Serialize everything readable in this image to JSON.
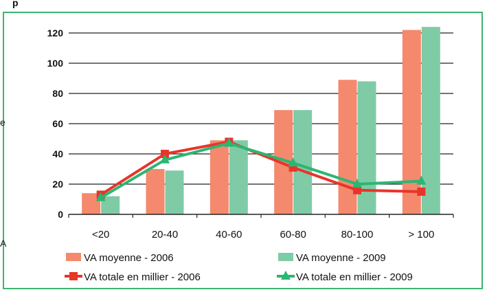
{
  "heading_fragment": "p",
  "side_fragments": [
    "e",
    "A"
  ],
  "chart_data": {
    "type": "bar",
    "categories": [
      "<20",
      "20-40",
      "40-60",
      "60-80",
      "80-100",
      "> 100"
    ],
    "ylim": [
      0,
      120
    ],
    "yticks": [
      0,
      20,
      40,
      60,
      80,
      100,
      120
    ],
    "ytick_labels": [
      "0",
      "20",
      "40",
      "60",
      "80",
      "100",
      "120"
    ],
    "grid": true,
    "legend_position": "bottom",
    "series": [
      {
        "name": "VA moyenne - 2006",
        "kind": "bar",
        "color": "#f4896e",
        "values": [
          14,
          30,
          49,
          69,
          89,
          122
        ]
      },
      {
        "name": "VA moyenne - 2009",
        "kind": "bar",
        "color": "#7fcba6",
        "values": [
          12,
          29,
          49,
          69,
          88,
          124
        ]
      },
      {
        "name": "VA totale en millier - 2006",
        "kind": "line",
        "marker": "square",
        "color": "#e8352a",
        "values": [
          13,
          40,
          48,
          31,
          16,
          15
        ]
      },
      {
        "name": "VA totale en millier - 2009",
        "kind": "line",
        "marker": "triangle",
        "color": "#2bb673",
        "values": [
          11,
          36,
          47,
          34,
          20,
          22
        ]
      }
    ]
  }
}
